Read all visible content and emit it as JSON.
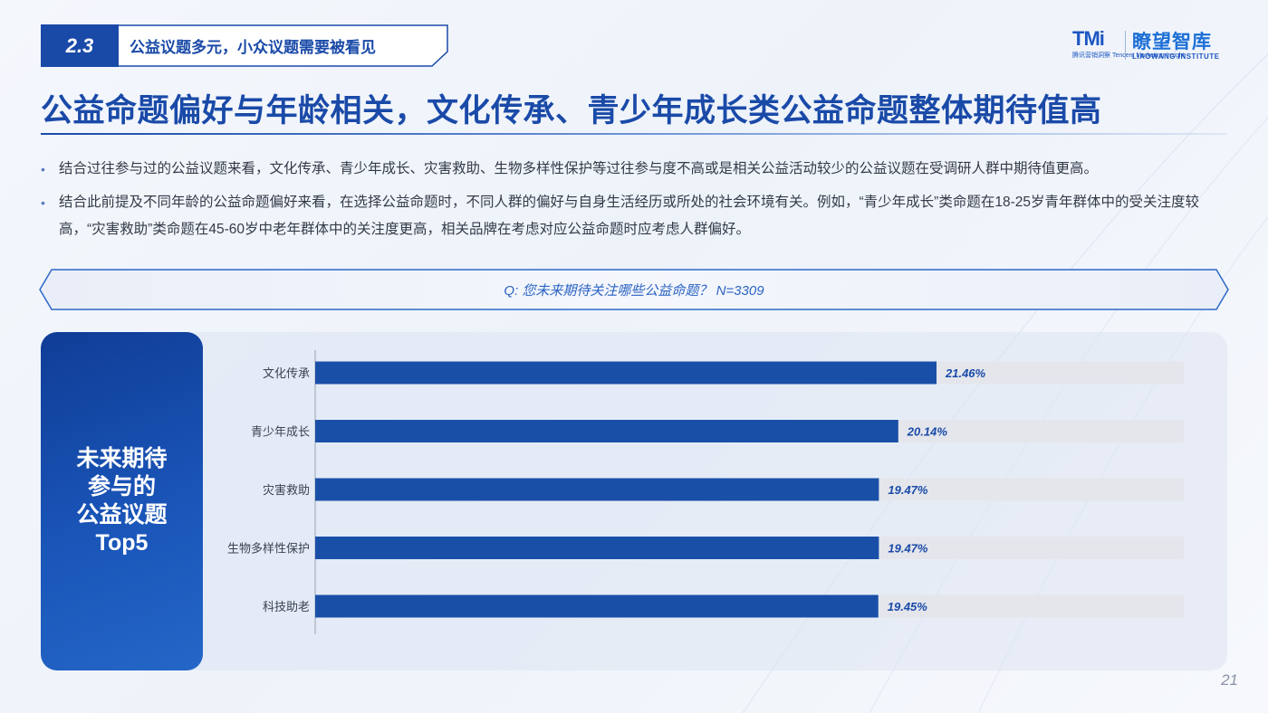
{
  "section": {
    "number": "2.3",
    "title": "公益议题多元，小众议题需要被看见"
  },
  "logo": {
    "brand_mark": "TMi",
    "brand_mark_sub": "腾讯营销洞察 Tencent Marketing Insight",
    "name": "瞭望智库",
    "name_en": "LIAOWANG INSTITUTE"
  },
  "main_title": "公益命题偏好与年龄相关，文化传承、青少年成长类公益命题整体期待值高",
  "bullets": [
    "结合过往参与过的公益议题来看，文化传承、青少年成长、灾害救助、生物多样性保护等过往参与度不高或是相关公益活动较少的公益议题在受调研人群中期待值更高。",
    "结合此前提及不同年龄的公益命题偏好来看，在选择公益命题时，不同人群的偏好与自身生活经历或所处的社会环境有关。例如，“青少年成长”类命题在18-25岁青年群体中的受关注度较高，“灾害救助”类命题在45-60岁中老年群体中的关注度更高，相关品牌在考虑对应公益命题时应考虑人群偏好。"
  ],
  "question": "Q: 您未来期待关注哪些公益命题？ N=3309",
  "side_card": "未来期待\n参与的\n公益议题\nTop5",
  "page_number": "21",
  "colors": {
    "primary": "#1a4aa8",
    "bar": "#1a4fa8",
    "track": "#e4e6ec"
  },
  "chart_data": {
    "type": "bar",
    "orientation": "horizontal",
    "categories": [
      "文化传承",
      "青少年成长",
      "灾害救助",
      "生物多样性保护",
      "科技助老"
    ],
    "values": [
      21.46,
      20.14,
      19.47,
      19.47,
      19.45
    ],
    "value_labels": [
      "21.46%",
      "20.14%",
      "19.47%",
      "19.47%",
      "19.45%"
    ],
    "unit": "%",
    "xlim": [
      0,
      30
    ],
    "grid": false,
    "legend": "none"
  }
}
